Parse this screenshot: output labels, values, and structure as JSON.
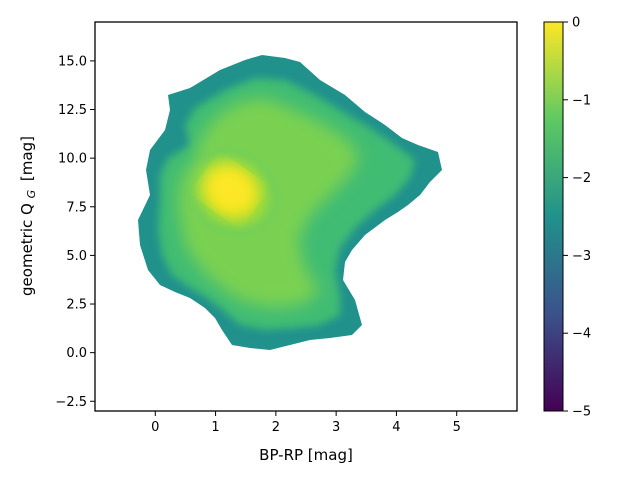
{
  "chart_data": {
    "type": "heatmap",
    "title": "",
    "xlabel": "BP-RP [mag]",
    "ylabel_main": "geometric Q",
    "ylabel_sub": "G",
    "ylabel_unit": "[mag]",
    "xlim": [
      -1.0,
      6.0
    ],
    "ylim": [
      -3.0,
      17.0
    ],
    "xticks": [
      {
        "value": 0,
        "label": "0"
      },
      {
        "value": 1,
        "label": "1"
      },
      {
        "value": 2,
        "label": "2"
      },
      {
        "value": 3,
        "label": "3"
      },
      {
        "value": 4,
        "label": "4"
      },
      {
        "value": 5,
        "label": "5"
      }
    ],
    "yticks": [
      {
        "value": -2.5,
        "label": "−2.5"
      },
      {
        "value": 0.0,
        "label": "0.0"
      },
      {
        "value": 2.5,
        "label": "2.5"
      },
      {
        "value": 5.0,
        "label": "5.0"
      },
      {
        "value": 7.5,
        "label": "7.5"
      },
      {
        "value": 10.0,
        "label": "10.0"
      },
      {
        "value": 12.5,
        "label": "12.5"
      },
      {
        "value": 15.0,
        "label": "15.0"
      }
    ],
    "colorbar": {
      "colormap": "viridis",
      "range": [
        -5,
        0
      ],
      "ticks": [
        {
          "value": 0,
          "label": "0"
        },
        {
          "value": -1,
          "label": "−1"
        },
        {
          "value": -2,
          "label": "−2"
        },
        {
          "value": -3,
          "label": "−3"
        },
        {
          "value": -4,
          "label": "−4"
        },
        {
          "value": -5,
          "label": "−5"
        }
      ]
    },
    "density_peak": {
      "x": 1.4,
      "y": 8.0,
      "value": 0.0
    },
    "grid": false,
    "legend": "none",
    "colors": {
      "viridis_stops": [
        "#440154",
        "#3b528b",
        "#21918c",
        "#5ec962",
        "#fde725"
      ]
    }
  }
}
